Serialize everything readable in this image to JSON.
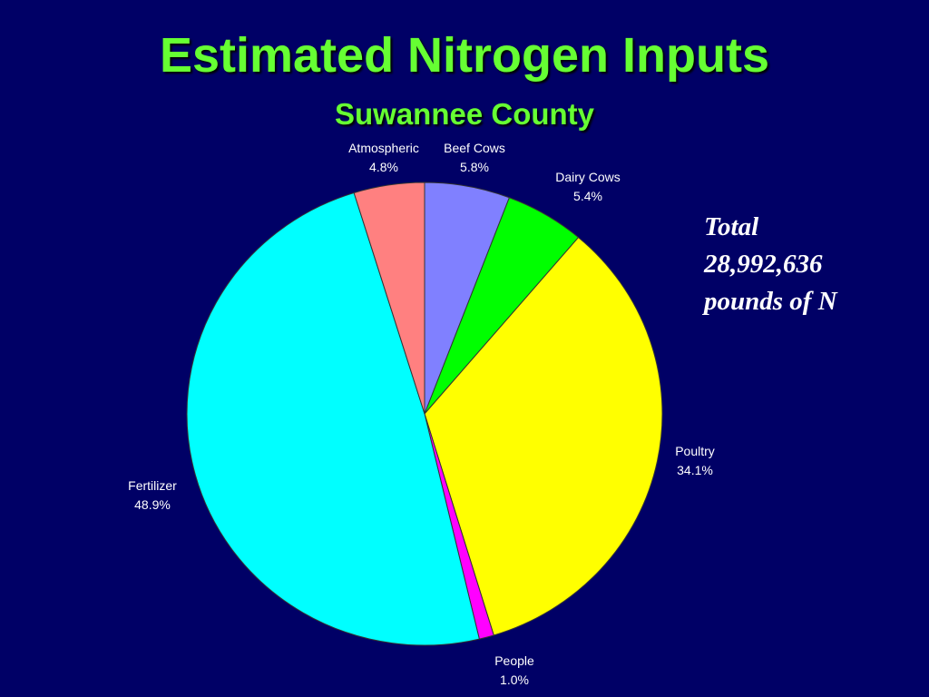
{
  "title": "Estimated Nitrogen Inputs",
  "subtitle": "Suwannee County",
  "total": {
    "line1": "Total",
    "line2": "28,992,636",
    "line3": "pounds of N"
  },
  "chart_data": {
    "type": "pie",
    "title": "Estimated Nitrogen Inputs",
    "subtitle": "Suwannee County",
    "start": "top, clockwise",
    "slices": [
      {
        "label": "Beef Cows",
        "value_label": "5.8%",
        "value": 5.8,
        "color": "#8080ff"
      },
      {
        "label": "Dairy Cows",
        "value_label": "5.4%",
        "value": 5.4,
        "color": "#00ff00"
      },
      {
        "label": "Poultry",
        "value_label": "34.1%",
        "value": 34.1,
        "color": "#ffff00"
      },
      {
        "label": "People",
        "value_label": "1.0%",
        "value": 1.0,
        "color": "#ff00ff"
      },
      {
        "label": "Fertilizer",
        "value_label": "48.9%",
        "value": 48.9,
        "color": "#00ffff"
      },
      {
        "label": "Atmospheric",
        "value_label": "4.8%",
        "value": 4.8,
        "color": "#ff8080"
      }
    ]
  }
}
